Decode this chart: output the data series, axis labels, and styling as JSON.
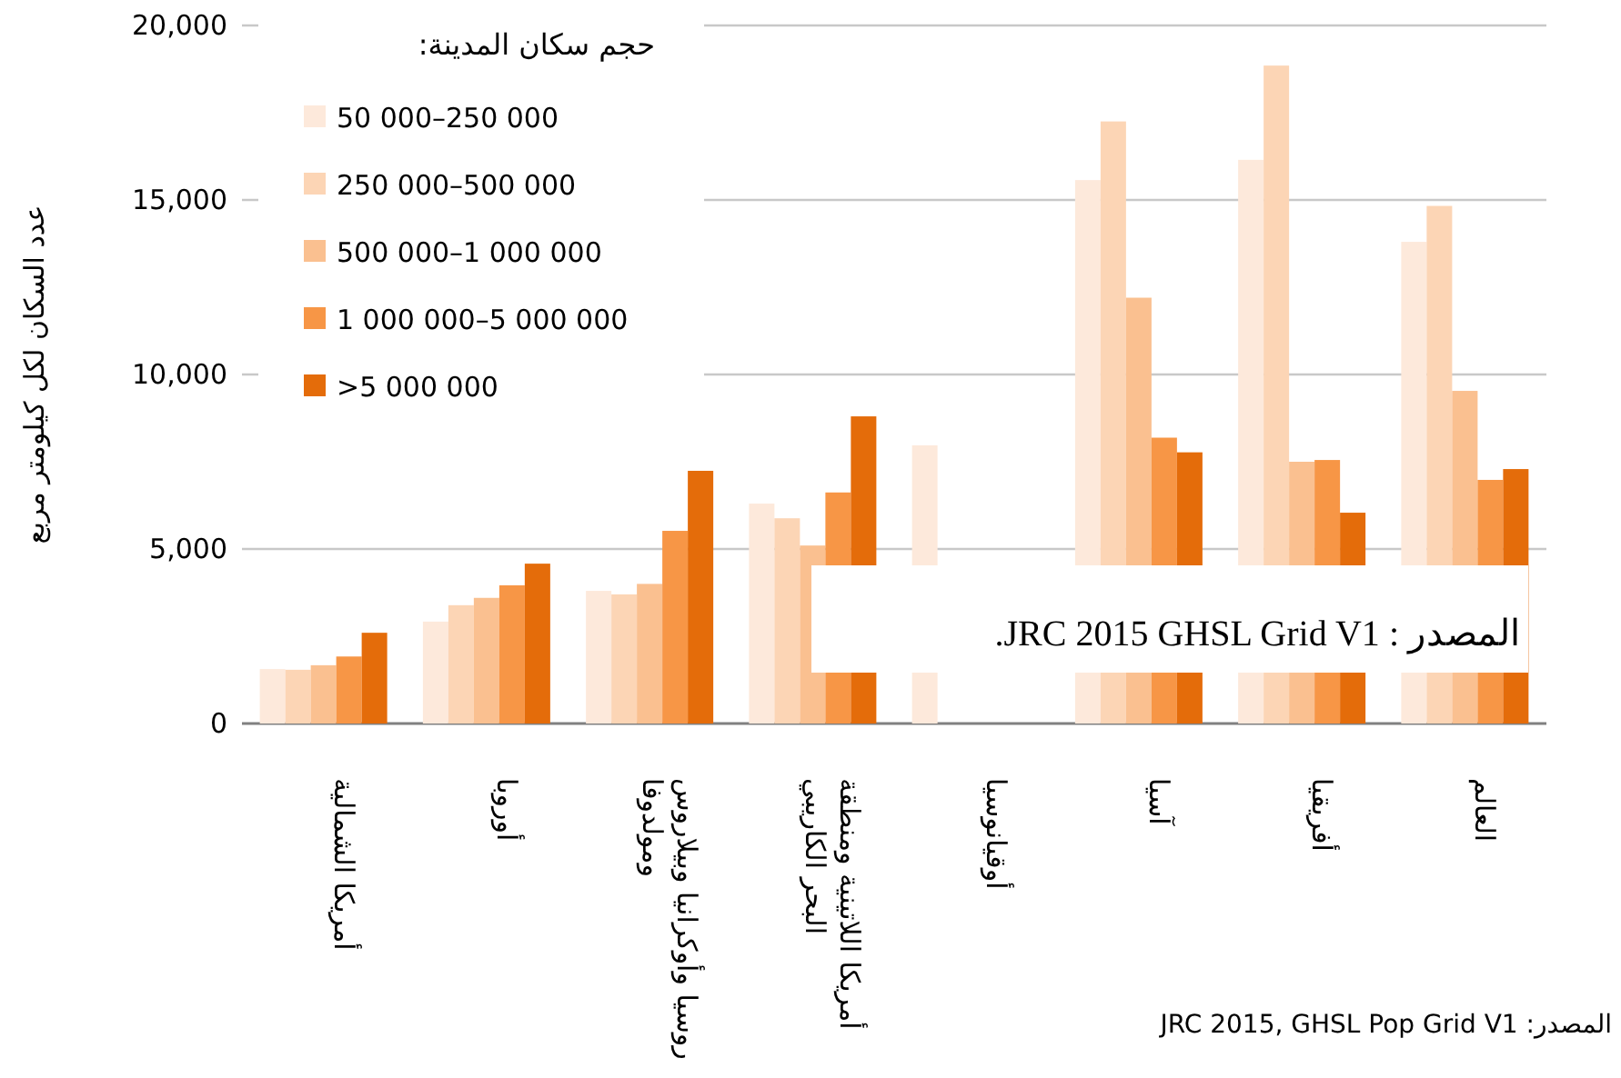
{
  "chart_data": {
    "type": "bar",
    "ylabel": "عدد السكان لكل كيلومتر مربع",
    "legend_title": "حجم سكان المدينة:",
    "categories": [
      "أمريكا الشمالية",
      "أوروبا",
      "روسيا وأوكرانيا وبيلاروس\nومولدوفا",
      "أمريكا اللاتينية ومنطقة\nالبحر الكاريبي",
      "أوقيانوسيا",
      "آسيا",
      "أفريقيا",
      "العالم"
    ],
    "series": [
      {
        "name": "50 000–250 000",
        "color": "#fde9db",
        "values": [
          1560,
          2920,
          3800,
          6300,
          7970,
          15570,
          16150,
          13800
        ]
      },
      {
        "name": "250 000–500 000",
        "color": "#fcd5b5",
        "values": [
          1540,
          3390,
          3700,
          5880,
          null,
          17250,
          18850,
          14830
        ]
      },
      {
        "name": "500 000–1 000 000",
        "color": "#fac090",
        "values": [
          1670,
          3600,
          4000,
          5100,
          null,
          12200,
          7500,
          9530
        ]
      },
      {
        "name": "1 000 000–5 000 000",
        "color": "#f79646",
        "values": [
          1920,
          3960,
          5520,
          6620,
          null,
          8190,
          7550,
          6980
        ]
      },
      {
        "name": ">5 000 000",
        "color": "#e46c0a",
        "values": [
          2600,
          4580,
          7240,
          8800,
          null,
          7770,
          6040,
          7290
        ]
      }
    ],
    "ylim": [
      0,
      20000
    ],
    "yticks": [
      {
        "value": 0,
        "label": "0"
      },
      {
        "value": 5000,
        "label": "5,000"
      },
      {
        "value": 10000,
        "label": "10,000"
      },
      {
        "value": 15000,
        "label": "15,000"
      },
      {
        "value": 20000,
        "label": "20,000"
      }
    ],
    "grid": "y",
    "legend": "top left",
    "annotations": [
      "المصدر : JRC 2015 GHSL Grid V1.",
      "المصدر: JRC 2015, GHSL Pop Grid V1"
    ]
  }
}
